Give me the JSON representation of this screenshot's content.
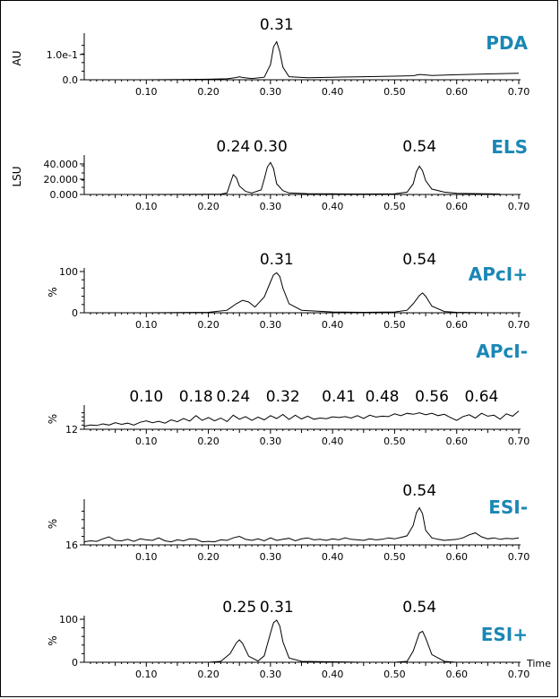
{
  "colors": {
    "detector_label": "#1b87b5",
    "trace": "#000000",
    "background": "#ffffff"
  },
  "time_label": "Time",
  "x_ticks": [
    "0.10",
    "0.20",
    "0.30",
    "0.40",
    "0.50",
    "0.60",
    "0.70"
  ],
  "chart_data": [
    {
      "type": "line",
      "title": "PDA",
      "ylabel": "AU",
      "y_ticks": [
        "0.0",
        "1.0e-1"
      ],
      "xlim": [
        0.0,
        0.7
      ],
      "ylim": [
        0.0,
        0.17
      ],
      "peak_labels": [
        {
          "x": 0.31,
          "text": "0.31"
        }
      ],
      "series": [
        {
          "x": [
            0.0,
            0.05,
            0.1,
            0.15,
            0.2,
            0.23,
            0.245,
            0.25,
            0.255,
            0.27,
            0.29,
            0.3,
            0.305,
            0.31,
            0.315,
            0.32,
            0.33,
            0.36,
            0.4,
            0.45,
            0.5,
            0.53,
            0.54,
            0.55,
            0.56,
            0.6,
            0.65,
            0.7
          ],
          "y": [
            0.0,
            0.0,
            0.0,
            0.001,
            0.002,
            0.004,
            0.009,
            0.012,
            0.009,
            0.005,
            0.01,
            0.06,
            0.13,
            0.15,
            0.11,
            0.05,
            0.012,
            0.008,
            0.01,
            0.012,
            0.014,
            0.016,
            0.021,
            0.019,
            0.017,
            0.02,
            0.023,
            0.026
          ]
        }
      ]
    },
    {
      "type": "line",
      "title": "ELS",
      "ylabel": "LSU",
      "y_ticks": [
        "0.000",
        "20.000",
        "40.000"
      ],
      "xlim": [
        0.0,
        0.7
      ],
      "ylim": [
        0.0,
        47.0
      ],
      "peak_labels": [
        {
          "x": 0.24,
          "text": "0.24"
        },
        {
          "x": 0.3,
          "text": "0.30"
        },
        {
          "x": 0.54,
          "text": "0.54"
        }
      ],
      "series": [
        {
          "x": [
            0.0,
            0.1,
            0.2,
            0.22,
            0.23,
            0.235,
            0.24,
            0.245,
            0.25,
            0.26,
            0.27,
            0.285,
            0.29,
            0.295,
            0.3,
            0.305,
            0.31,
            0.32,
            0.33,
            0.36,
            0.4,
            0.45,
            0.5,
            0.52,
            0.53,
            0.535,
            0.54,
            0.545,
            0.55,
            0.56,
            0.58,
            0.6,
            0.65,
            0.67
          ],
          "y": [
            0.0,
            0.0,
            0.2,
            0.5,
            2.0,
            14.0,
            26.0,
            22.0,
            11.0,
            4.0,
            2.0,
            6.0,
            20.0,
            36.0,
            42.0,
            34.0,
            14.0,
            5.0,
            2.0,
            1.0,
            0.8,
            0.6,
            0.8,
            3.0,
            14.0,
            30.0,
            37.0,
            31.0,
            18.0,
            7.0,
            3.0,
            1.5,
            0.8,
            0.6
          ]
        }
      ]
    },
    {
      "type": "line",
      "title": "APcI+",
      "ylabel": "%",
      "y_ticks": [
        "0",
        "100"
      ],
      "xlim": [
        0.0,
        0.7
      ],
      "ylim": [
        0,
        100
      ],
      "peak_labels": [
        {
          "x": 0.31,
          "text": "0.31"
        },
        {
          "x": 0.54,
          "text": "0.54"
        }
      ],
      "series": [
        {
          "x": [
            0.0,
            0.1,
            0.2,
            0.23,
            0.245,
            0.255,
            0.265,
            0.275,
            0.29,
            0.3,
            0.305,
            0.31,
            0.315,
            0.32,
            0.33,
            0.35,
            0.4,
            0.45,
            0.5,
            0.52,
            0.53,
            0.54,
            0.545,
            0.55,
            0.56,
            0.58,
            0.6,
            0.65,
            0.7
          ],
          "y": [
            0,
            0,
            1,
            6,
            22,
            30,
            26,
            14,
            38,
            75,
            92,
            97,
            88,
            60,
            22,
            6,
            2,
            1,
            2,
            6,
            22,
            42,
            48,
            40,
            16,
            3,
            1,
            0,
            0
          ]
        }
      ]
    },
    {
      "type": "line",
      "title": "APcI-",
      "ylabel": "%",
      "y_ticks": [
        "12"
      ],
      "xlim": [
        0.0,
        0.7
      ],
      "ylim": [
        12,
        100
      ],
      "peak_labels": [
        {
          "x": 0.1,
          "text": "0.10"
        },
        {
          "x": 0.18,
          "text": "0.18"
        },
        {
          "x": 0.24,
          "text": "0.24"
        },
        {
          "x": 0.32,
          "text": "0.32"
        },
        {
          "x": 0.41,
          "text": "0.41"
        },
        {
          "x": 0.48,
          "text": "0.48"
        },
        {
          "x": 0.56,
          "text": "0.56"
        },
        {
          "x": 0.64,
          "text": "0.64"
        }
      ],
      "series": [
        {
          "x": [
            0.0,
            0.01,
            0.02,
            0.03,
            0.04,
            0.05,
            0.06,
            0.07,
            0.08,
            0.09,
            0.1,
            0.11,
            0.12,
            0.13,
            0.14,
            0.15,
            0.16,
            0.17,
            0.18,
            0.19,
            0.2,
            0.21,
            0.22,
            0.23,
            0.24,
            0.25,
            0.26,
            0.27,
            0.28,
            0.29,
            0.3,
            0.31,
            0.32,
            0.33,
            0.34,
            0.35,
            0.36,
            0.37,
            0.38,
            0.39,
            0.4,
            0.41,
            0.42,
            0.43,
            0.44,
            0.45,
            0.46,
            0.47,
            0.48,
            0.49,
            0.5,
            0.51,
            0.52,
            0.53,
            0.54,
            0.55,
            0.56,
            0.57,
            0.58,
            0.59,
            0.6,
            0.61,
            0.62,
            0.63,
            0.64,
            0.65,
            0.66,
            0.67,
            0.68,
            0.69,
            0.7
          ],
          "y": [
            25,
            30,
            28,
            35,
            30,
            40,
            33,
            38,
            30,
            42,
            48,
            40,
            46,
            38,
            52,
            44,
            58,
            47,
            70,
            50,
            62,
            48,
            60,
            45,
            72,
            55,
            66,
            50,
            64,
            52,
            70,
            58,
            75,
            54,
            72,
            56,
            68,
            55,
            60,
            57,
            65,
            62,
            66,
            60,
            70,
            58,
            72,
            64,
            68,
            66,
            78,
            70,
            80,
            76,
            82,
            74,
            80,
            70,
            76,
            62,
            50,
            66,
            74,
            60,
            80,
            68,
            72,
            55,
            78,
            68,
            90
          ]
        }
      ]
    },
    {
      "type": "line",
      "title": "ESI-",
      "ylabel": "%",
      "y_ticks": [
        "16"
      ],
      "xlim": [
        0.0,
        0.7
      ],
      "ylim": [
        16,
        100
      ],
      "peak_labels": [
        {
          "x": 0.54,
          "text": "0.54"
        }
      ],
      "series": [
        {
          "x": [
            0.0,
            0.01,
            0.02,
            0.03,
            0.04,
            0.05,
            0.06,
            0.07,
            0.08,
            0.09,
            0.1,
            0.11,
            0.12,
            0.13,
            0.14,
            0.15,
            0.16,
            0.17,
            0.18,
            0.19,
            0.2,
            0.21,
            0.22,
            0.23,
            0.24,
            0.25,
            0.26,
            0.27,
            0.28,
            0.29,
            0.3,
            0.31,
            0.32,
            0.33,
            0.34,
            0.35,
            0.36,
            0.37,
            0.38,
            0.39,
            0.4,
            0.41,
            0.42,
            0.43,
            0.44,
            0.45,
            0.46,
            0.47,
            0.48,
            0.49,
            0.5,
            0.51,
            0.52,
            0.53,
            0.535,
            0.54,
            0.545,
            0.55,
            0.56,
            0.57,
            0.58,
            0.59,
            0.6,
            0.61,
            0.62,
            0.63,
            0.64,
            0.65,
            0.66,
            0.67,
            0.68,
            0.69,
            0.7
          ],
          "y": [
            22,
            24,
            23,
            28,
            32,
            25,
            24,
            27,
            23,
            28,
            26,
            25,
            30,
            24,
            22,
            26,
            24,
            28,
            27,
            22,
            23,
            22,
            26,
            25,
            30,
            33,
            27,
            25,
            28,
            24,
            30,
            25,
            27,
            29,
            24,
            28,
            30,
            26,
            27,
            25,
            28,
            26,
            30,
            27,
            26,
            25,
            28,
            26,
            27,
            30,
            28,
            31,
            34,
            55,
            80,
            90,
            78,
            45,
            30,
            27,
            25,
            26,
            27,
            30,
            36,
            40,
            32,
            28,
            30,
            27,
            29,
            28,
            30
          ]
        }
      ]
    },
    {
      "type": "line",
      "title": "ESI+",
      "ylabel": "%",
      "y_ticks": [
        "0",
        "100"
      ],
      "xlim": [
        0.0,
        0.7
      ],
      "ylim": [
        0,
        100
      ],
      "peak_labels": [
        {
          "x": 0.25,
          "text": "0.25"
        },
        {
          "x": 0.31,
          "text": "0.31"
        },
        {
          "x": 0.54,
          "text": "0.54"
        }
      ],
      "series": [
        {
          "x": [
            0.0,
            0.1,
            0.2,
            0.22,
            0.235,
            0.245,
            0.25,
            0.255,
            0.265,
            0.28,
            0.29,
            0.3,
            0.305,
            0.31,
            0.315,
            0.32,
            0.33,
            0.35,
            0.4,
            0.45,
            0.5,
            0.52,
            0.53,
            0.54,
            0.545,
            0.55,
            0.56,
            0.58,
            0.6,
            0.65,
            0.7
          ],
          "y": [
            0,
            0,
            0,
            2,
            20,
            45,
            52,
            44,
            14,
            3,
            15,
            68,
            92,
            98,
            84,
            48,
            10,
            2,
            1,
            0,
            0,
            2,
            26,
            68,
            72,
            56,
            18,
            2,
            0,
            0,
            0
          ]
        }
      ]
    }
  ]
}
